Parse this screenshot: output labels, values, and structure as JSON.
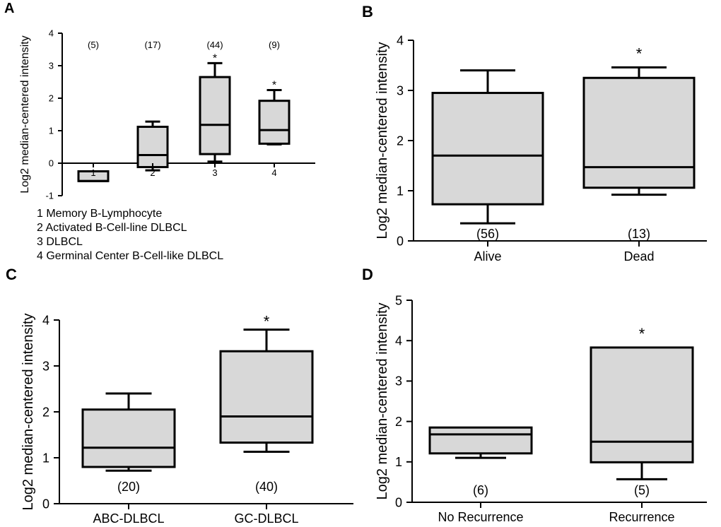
{
  "colors": {
    "box_fill": "#d8d8d8",
    "stroke": "#000000",
    "background": "#ffffff"
  },
  "chart_data": [
    {
      "id": "A",
      "panel_label": "A",
      "type": "box",
      "ylabel": "Log2 median-centered intensity",
      "ylim": [
        -1,
        4
      ],
      "yticks": [
        -1,
        0,
        1,
        2,
        3,
        4
      ],
      "zero_line": true,
      "categories": [
        "1",
        "2",
        "3",
        "4"
      ],
      "boxes": [
        {
          "category": "1",
          "n_label": "(5)",
          "min": -0.55,
          "q1": -0.55,
          "median": -0.55,
          "q3": -0.25,
          "max": -0.25,
          "star": ""
        },
        {
          "category": "2",
          "n_label": "(17)",
          "min": -0.22,
          "q1": -0.12,
          "median": 0.25,
          "q3": 1.12,
          "max": 1.28,
          "star": ""
        },
        {
          "category": "3",
          "n_label": "(44)",
          "min": 0.05,
          "q1": 0.28,
          "median": 1.18,
          "q3": 2.65,
          "max": 3.08,
          "star": "*"
        },
        {
          "category": "4",
          "n_label": "(9)",
          "min": 0.58,
          "q1": 0.6,
          "median": 1.02,
          "q3": 1.92,
          "max": 2.25,
          "star": "*"
        }
      ],
      "legend": [
        "1 Memory B-Lymphocyte",
        "2 Activated B-Cell-line DLBCL",
        "3 DLBCL",
        "4 Germinal Center B-Cell-like DLBCL"
      ]
    },
    {
      "id": "B",
      "panel_label": "B",
      "type": "box",
      "ylabel": "Log2 median-centered intensity",
      "ylim": [
        0,
        4
      ],
      "yticks": [
        0,
        1,
        2,
        3,
        4
      ],
      "categories": [
        "Alive",
        "Dead"
      ],
      "boxes": [
        {
          "category": "Alive",
          "n_label": "(56)",
          "min": 0.35,
          "q1": 0.73,
          "median": 1.7,
          "q3": 2.95,
          "max": 3.4,
          "star": ""
        },
        {
          "category": "Dead",
          "n_label": "(13)",
          "min": 0.92,
          "q1": 1.06,
          "median": 1.47,
          "q3": 3.25,
          "max": 3.46,
          "star": "*"
        }
      ]
    },
    {
      "id": "C",
      "panel_label": "C",
      "type": "box",
      "ylabel": "Log2 median-centered intensity",
      "ylim": [
        0,
        4
      ],
      "yticks": [
        0,
        1,
        2,
        3,
        4
      ],
      "categories": [
        "ABC-DLBCL",
        "GC-DLBCL"
      ],
      "boxes": [
        {
          "category": "ABC-DLBCL",
          "n_label": "(20)",
          "min": 0.72,
          "q1": 0.8,
          "median": 1.22,
          "q3": 2.05,
          "max": 2.4,
          "star": ""
        },
        {
          "category": "GC-DLBCL",
          "n_label": "(40)",
          "min": 1.13,
          "q1": 1.33,
          "median": 1.9,
          "q3": 3.32,
          "max": 3.79,
          "star": "*"
        }
      ]
    },
    {
      "id": "D",
      "panel_label": "D",
      "type": "box",
      "ylabel": "Log2 median-centered intensity",
      "ylim": [
        0,
        5
      ],
      "yticks": [
        0,
        1,
        2,
        3,
        4,
        5
      ],
      "categories": [
        "No Recurrence",
        "Recurrence"
      ],
      "boxes": [
        {
          "category": "No Recurrence",
          "n_label": "(6)",
          "min": 1.1,
          "q1": 1.21,
          "median": 1.68,
          "q3": 1.85,
          "max": 1.85,
          "star": ""
        },
        {
          "category": "Recurrence",
          "n_label": "(5)",
          "min": 0.57,
          "q1": 0.99,
          "median": 1.5,
          "q3": 3.83,
          "max": 3.83,
          "star": "*"
        }
      ]
    }
  ]
}
